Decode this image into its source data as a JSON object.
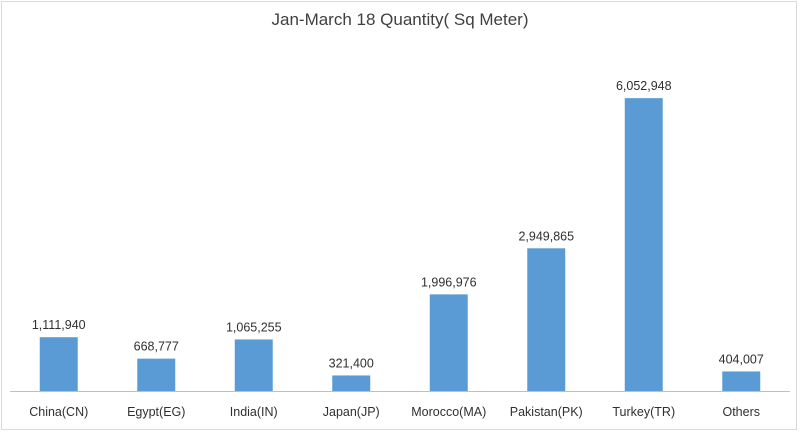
{
  "chart_data": {
    "type": "bar",
    "title": "Jan-March 18 Quantity( Sq Meter)",
    "xlabel": "",
    "ylabel": "",
    "categories": [
      "China(CN)",
      "Egypt(EG)",
      "India(IN)",
      "Japan(JP)",
      "Morocco(MA)",
      "Pakistan(PK)",
      "Turkey(TR)",
      "Others"
    ],
    "values": [
      1111940,
      668777,
      1065255,
      321400,
      1996976,
      2949865,
      6052948,
      404007
    ],
    "data_labels": [
      "1,111,940",
      "668,777",
      "1,065,255",
      "321,400",
      "1,996,976",
      "2,949,865",
      "6,052,948",
      "404,007"
    ],
    "ylim": [
      0,
      6800000
    ],
    "grid": false,
    "legend": "none",
    "bar_color": "#5b9bd5"
  }
}
